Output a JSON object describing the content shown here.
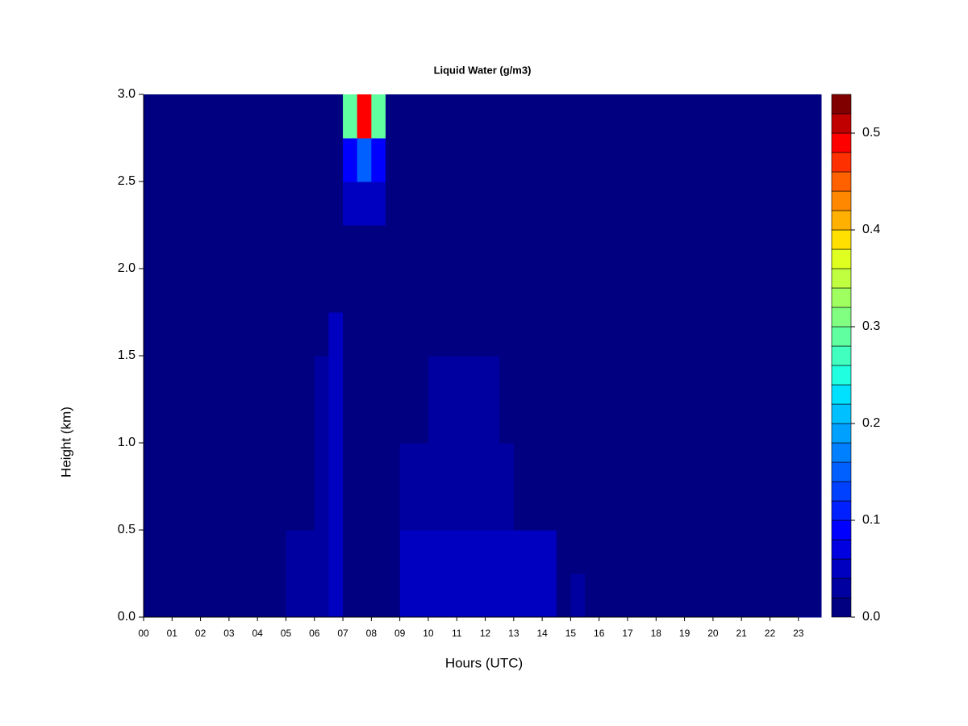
{
  "chart_data": {
    "type": "heatmap",
    "title": "Liquid Water (g/m3)",
    "x_label": "Hours (UTC)",
    "y_label": "Height (km)",
    "x": [
      0,
      0.5,
      1,
      1.5,
      2,
      2.5,
      3,
      3.5,
      4,
      4.5,
      5,
      5.5,
      6,
      6.5,
      7,
      7.5,
      8,
      8.5,
      9,
      9.5,
      10,
      10.5,
      11,
      11.5,
      12,
      12.5,
      13,
      13.5,
      14,
      14.5,
      15,
      15.5,
      16,
      16.5,
      17,
      17.5,
      18,
      18.5,
      19,
      19.5,
      20,
      20.5,
      21,
      21.5,
      22,
      22.5,
      23,
      23.5
    ],
    "y": [
      0,
      0.25,
      0.5,
      0.75,
      1,
      1.25,
      1.5,
      1.75,
      2,
      2.25,
      2.5,
      2.75
    ],
    "z": [
      [
        0,
        0,
        0,
        0,
        0,
        0,
        0,
        0,
        0,
        0,
        0.03,
        0.03,
        0.03,
        0.05,
        0,
        0,
        0,
        0,
        0.04,
        0.04,
        0.04,
        0.04,
        0.04,
        0.04,
        0.04,
        0.04,
        0.04,
        0.04,
        0.04,
        0,
        0.03,
        0,
        0,
        0,
        0,
        0,
        0,
        0,
        0,
        0,
        0,
        0,
        0,
        0,
        0,
        0,
        0,
        0
      ],
      [
        0,
        0,
        0,
        0,
        0,
        0,
        0,
        0,
        0,
        0,
        0.03,
        0.03,
        0.03,
        0.05,
        0,
        0,
        0,
        0,
        0.04,
        0.04,
        0.04,
        0.04,
        0.04,
        0.04,
        0.04,
        0.04,
        0.04,
        0.04,
        0.04,
        0,
        0,
        0,
        0,
        0,
        0,
        0,
        0,
        0,
        0,
        0,
        0,
        0,
        0,
        0,
        0,
        0,
        0,
        0
      ],
      [
        0,
        0,
        0,
        0,
        0,
        0,
        0,
        0,
        0,
        0,
        0,
        0,
        0.025,
        0.05,
        0,
        0,
        0,
        0,
        0.03,
        0.03,
        0.03,
        0.03,
        0.03,
        0.03,
        0.03,
        0.03,
        0,
        0,
        0,
        0,
        0,
        0,
        0,
        0,
        0,
        0,
        0,
        0,
        0,
        0,
        0,
        0,
        0,
        0,
        0,
        0,
        0,
        0
      ],
      [
        0,
        0,
        0,
        0,
        0,
        0,
        0,
        0,
        0,
        0,
        0,
        0,
        0.025,
        0.05,
        0,
        0,
        0,
        0,
        0.03,
        0.03,
        0.03,
        0.03,
        0.03,
        0.03,
        0.03,
        0.03,
        0,
        0,
        0,
        0,
        0,
        0,
        0,
        0,
        0,
        0,
        0,
        0,
        0,
        0,
        0,
        0,
        0,
        0,
        0,
        0,
        0,
        0
      ],
      [
        0,
        0,
        0,
        0,
        0,
        0,
        0,
        0,
        0,
        0,
        0,
        0,
        0.025,
        0.05,
        0,
        0,
        0,
        0,
        0,
        0,
        0.025,
        0.025,
        0.025,
        0.025,
        0.025,
        0,
        0,
        0,
        0,
        0,
        0,
        0,
        0,
        0,
        0,
        0,
        0,
        0,
        0,
        0,
        0,
        0,
        0,
        0,
        0,
        0,
        0,
        0
      ],
      [
        0,
        0,
        0,
        0,
        0,
        0,
        0,
        0,
        0,
        0,
        0,
        0,
        0.025,
        0.05,
        0,
        0,
        0,
        0,
        0,
        0,
        0.025,
        0.025,
        0.025,
        0.025,
        0.025,
        0,
        0,
        0,
        0,
        0,
        0,
        0,
        0,
        0,
        0,
        0,
        0,
        0,
        0,
        0,
        0,
        0,
        0,
        0,
        0,
        0,
        0,
        0
      ],
      [
        0,
        0,
        0,
        0,
        0,
        0,
        0,
        0,
        0,
        0,
        0,
        0,
        0,
        0.05,
        0,
        0,
        0,
        0,
        0,
        0,
        0,
        0,
        0,
        0,
        0,
        0,
        0,
        0,
        0,
        0,
        0,
        0,
        0,
        0,
        0,
        0,
        0,
        0,
        0,
        0,
        0,
        0,
        0,
        0,
        0,
        0,
        0,
        0
      ],
      [
        0,
        0,
        0,
        0,
        0,
        0,
        0,
        0,
        0,
        0,
        0,
        0,
        0,
        0,
        0,
        0,
        0,
        0,
        0,
        0,
        0,
        0,
        0,
        0,
        0,
        0,
        0,
        0,
        0,
        0,
        0,
        0,
        0,
        0,
        0,
        0,
        0,
        0,
        0,
        0,
        0,
        0,
        0,
        0,
        0,
        0,
        0,
        0
      ],
      [
        0,
        0,
        0,
        0,
        0,
        0,
        0,
        0,
        0,
        0,
        0,
        0,
        0,
        0,
        0,
        0,
        0,
        0,
        0,
        0,
        0,
        0,
        0,
        0,
        0,
        0,
        0,
        0,
        0,
        0,
        0,
        0,
        0,
        0,
        0,
        0,
        0,
        0,
        0,
        0,
        0,
        0,
        0,
        0,
        0,
        0,
        0,
        0
      ],
      [
        0,
        0,
        0,
        0,
        0,
        0,
        0,
        0,
        0,
        0,
        0,
        0,
        0,
        0,
        0.05,
        0.05,
        0.05,
        0,
        0,
        0,
        0,
        0,
        0,
        0,
        0,
        0,
        0,
        0,
        0,
        0,
        0,
        0,
        0,
        0,
        0,
        0,
        0,
        0,
        0,
        0,
        0,
        0,
        0,
        0,
        0,
        0,
        0,
        0
      ],
      [
        0,
        0,
        0,
        0,
        0,
        0,
        0,
        0,
        0,
        0,
        0,
        0,
        0,
        0,
        0.08,
        0.15,
        0.08,
        0,
        0,
        0,
        0,
        0,
        0,
        0,
        0,
        0,
        0,
        0,
        0,
        0,
        0,
        0,
        0,
        0,
        0,
        0,
        0,
        0,
        0,
        0,
        0,
        0,
        0,
        0,
        0,
        0,
        0,
        0
      ],
      [
        0,
        0,
        0,
        0,
        0,
        0,
        0,
        0,
        0,
        0,
        0,
        0,
        0,
        0,
        0.3,
        0.5,
        0.3,
        0,
        0,
        0,
        0,
        0,
        0,
        0,
        0,
        0,
        0,
        0,
        0,
        0,
        0,
        0,
        0,
        0,
        0,
        0,
        0,
        0,
        0,
        0,
        0,
        0,
        0,
        0,
        0,
        0,
        0,
        0
      ]
    ],
    "xlim": [
      0,
      23.8
    ],
    "ylim": [
      0,
      3
    ],
    "xticks": [
      {
        "value": 0,
        "label": "00"
      },
      {
        "value": 1,
        "label": "01"
      },
      {
        "value": 2,
        "label": "02"
      },
      {
        "value": 3,
        "label": "03"
      },
      {
        "value": 4,
        "label": "04"
      },
      {
        "value": 5,
        "label": "05"
      },
      {
        "value": 6,
        "label": "06"
      },
      {
        "value": 7,
        "label": "07"
      },
      {
        "value": 8,
        "label": "08"
      },
      {
        "value": 9,
        "label": "09"
      },
      {
        "value": 10,
        "label": "10"
      },
      {
        "value": 11,
        "label": "11"
      },
      {
        "value": 12,
        "label": "12"
      },
      {
        "value": 13,
        "label": "13"
      },
      {
        "value": 14,
        "label": "14"
      },
      {
        "value": 15,
        "label": "15"
      },
      {
        "value": 16,
        "label": "16"
      },
      {
        "value": 17,
        "label": "17"
      },
      {
        "value": 18,
        "label": "18"
      },
      {
        "value": 19,
        "label": "19"
      },
      {
        "value": 20,
        "label": "20"
      },
      {
        "value": 21,
        "label": "21"
      },
      {
        "value": 22,
        "label": "22"
      },
      {
        "value": 23,
        "label": "23"
      }
    ],
    "yticks": [
      {
        "value": 0,
        "label": "0.0"
      },
      0.5,
      {
        "value": 1,
        "label": "1.0"
      },
      1.5,
      {
        "value": 2,
        "label": "2.0"
      },
      2.5,
      {
        "value": 3,
        "label": "3.0"
      }
    ],
    "zlim": [
      0,
      0.54
    ],
    "zticks": [
      {
        "value": 0,
        "label": "0.0"
      },
      0.1,
      0.2,
      0.3,
      0.4,
      0.5
    ],
    "colors": [
      "#000080",
      "#0000A0",
      "#0000C0",
      "#0000E0",
      "#0000FF",
      "#0020FF",
      "#0040FF",
      "#0060FF",
      "#0080FF",
      "#00A0FF",
      "#00C0FF",
      "#00E0FF",
      "#20FFDF",
      "#40FFBF",
      "#60FF9F",
      "#80FF80",
      "#9FFF60",
      "#BFFF40",
      "#DFFF20",
      "#FFE000",
      "#FFB000",
      "#FF8800",
      "#FF6000",
      "#FF3000",
      "#FF0000",
      "#C00000",
      "#800000"
    ]
  }
}
